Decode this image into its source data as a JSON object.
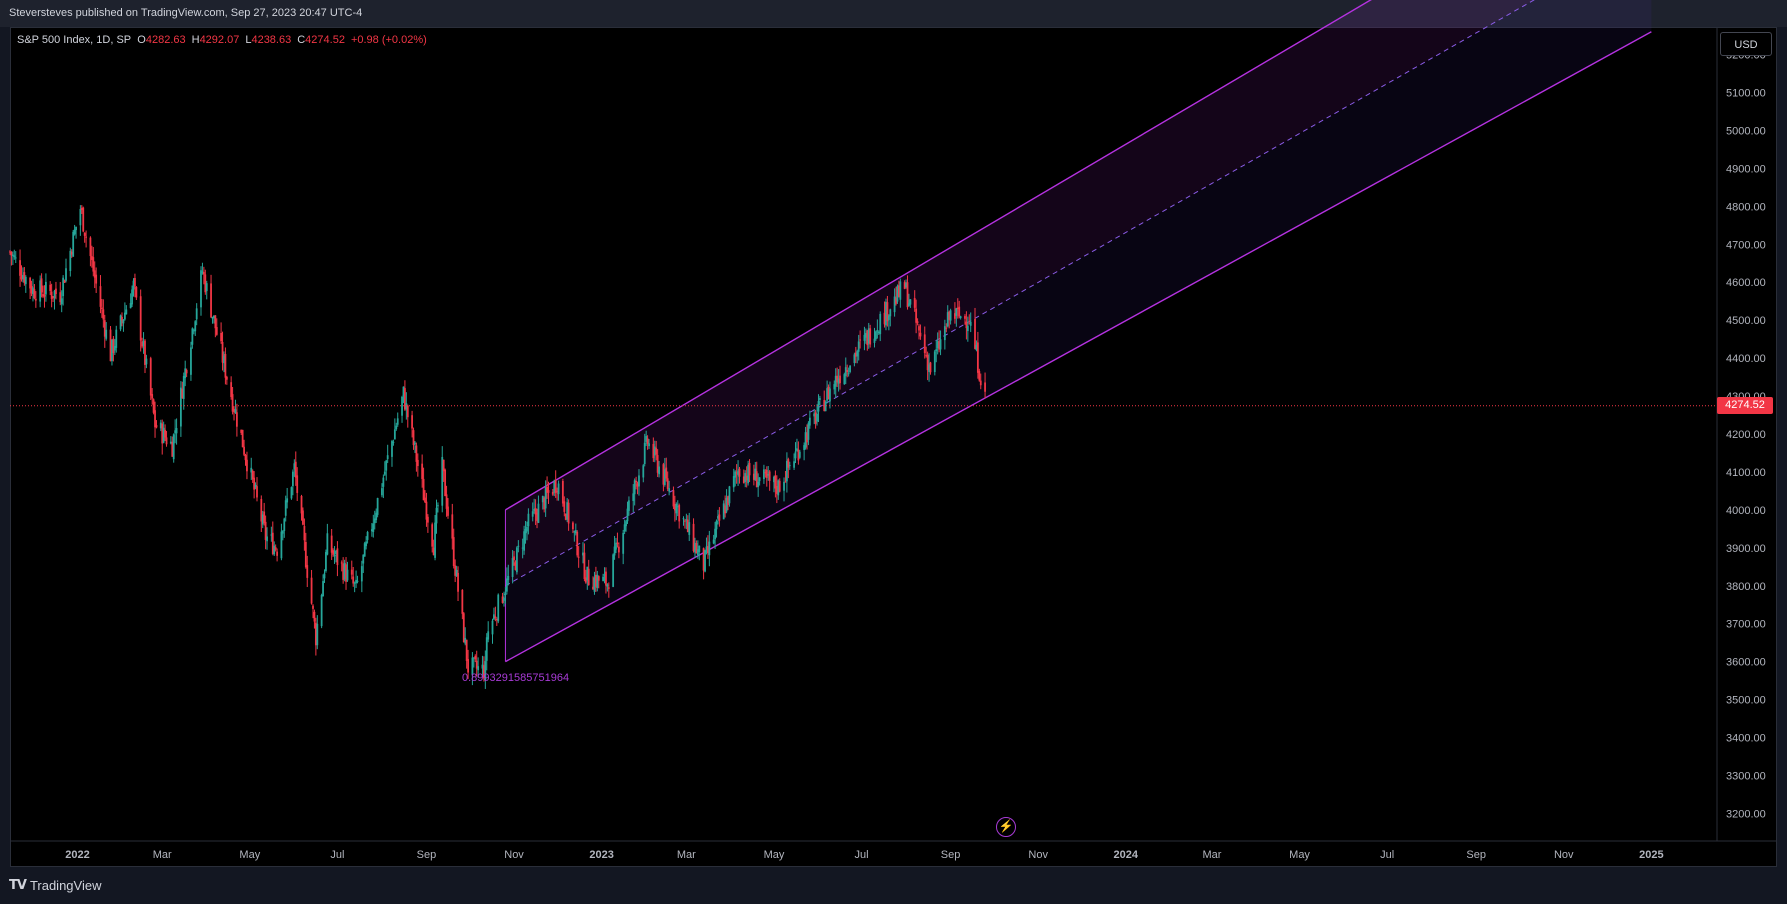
{
  "header": {
    "published": "Steversteves published on TradingView.com, Sep 27, 2023 20:47 UTC-4"
  },
  "legend": {
    "symbol": "S&P 500 Index, 1D, SP",
    "o_label": "O",
    "o_value": "4282.63",
    "h_label": "H",
    "h_value": "4292.07",
    "l_label": "L",
    "l_value": "4238.63",
    "c_label": "C",
    "c_value": "4274.52",
    "change": "+0.98 (+0.02%)"
  },
  "currency_button": "USD",
  "last_price": "4274.52",
  "fib_label": "0.8993291585751964",
  "footer": {
    "brand": "TradingView",
    "logo_icon": "tradingview-logo-icon"
  },
  "colors": {
    "up": "#26a69a",
    "down": "#f23645",
    "channel": "#b532e0",
    "background": "#000000",
    "price_line": "#f23645"
  },
  "chart_data": {
    "type": "candlestick",
    "title": "S&P 500 Index, 1D, SP",
    "ylim": [
      3130,
      5270
    ],
    "y_ticks": [
      3200,
      3300,
      3400,
      3500,
      3600,
      3700,
      3800,
      3900,
      4000,
      4100,
      4200,
      4300,
      4400,
      4500,
      4600,
      4700,
      4800,
      4900,
      5000,
      5100,
      5200
    ],
    "y_tick_labels": [
      "3200.00",
      "3300.00",
      "3400.00",
      "3500.00",
      "3600.00",
      "3700.00",
      "3800.00",
      "3900.00",
      "4000.00",
      "4100.00",
      "4200.00",
      "4300.00",
      "4400.00",
      "4500.00",
      "4600.00",
      "4700.00",
      "4800.00",
      "4900.00",
      "5000.00",
      "5100.00",
      "5200.00"
    ],
    "x_tick_labels": [
      "2022",
      "Mar",
      "May",
      "Jul",
      "Sep",
      "Nov",
      "2023",
      "Mar",
      "May",
      "Jul",
      "Sep",
      "Nov",
      "2024",
      "Mar",
      "May",
      "Jul",
      "Sep",
      "Nov",
      "2025"
    ],
    "x_tick_dates": [
      "2022-01-01",
      "2022-03-01",
      "2022-05-01",
      "2022-07-01",
      "2022-09-01",
      "2022-11-01",
      "2023-01-01",
      "2023-03-01",
      "2023-05-01",
      "2023-07-01",
      "2023-09-01",
      "2023-11-01",
      "2024-01-01",
      "2024-03-01",
      "2024-05-01",
      "2024-07-01",
      "2024-09-01",
      "2024-11-01",
      "2025-01-01"
    ],
    "x_range": [
      "2021-11-15",
      "2025-02-15"
    ],
    "last_price": 4274.52,
    "close_path": [
      [
        "2021-11-15",
        4680
      ],
      [
        "2021-12-01",
        4580
      ],
      [
        "2021-12-20",
        4570
      ],
      [
        "2022-01-03",
        4796
      ],
      [
        "2022-01-24",
        4410
      ],
      [
        "2022-02-09",
        4590
      ],
      [
        "2022-02-24",
        4225
      ],
      [
        "2022-03-08",
        4170
      ],
      [
        "2022-03-29",
        4630
      ],
      [
        "2022-04-12",
        4400
      ],
      [
        "2022-04-29",
        4130
      ],
      [
        "2022-05-12",
        3930
      ],
      [
        "2022-05-20",
        3900
      ],
      [
        "2022-06-01",
        4110
      ],
      [
        "2022-06-16",
        3666
      ],
      [
        "2022-06-24",
        3910
      ],
      [
        "2022-07-14",
        3790
      ],
      [
        "2022-08-16",
        4305
      ],
      [
        "2022-09-06",
        3910
      ],
      [
        "2022-09-12",
        4110
      ],
      [
        "2022-09-30",
        3585
      ],
      [
        "2022-10-12",
        3577
      ],
      [
        "2022-10-13",
        3670
      ],
      [
        "2022-11-01",
        3856
      ],
      [
        "2022-11-10",
        3956
      ],
      [
        "2022-12-01",
        4076
      ],
      [
        "2022-12-22",
        3822
      ],
      [
        "2023-01-05",
        3808
      ],
      [
        "2023-02-02",
        4179
      ],
      [
        "2023-03-13",
        3855
      ],
      [
        "2023-04-06",
        4105
      ],
      [
        "2023-05-04",
        4061
      ],
      [
        "2023-06-12",
        4338
      ],
      [
        "2023-07-31",
        4588
      ],
      [
        "2023-08-18",
        4370
      ],
      [
        "2023-09-01",
        4515
      ],
      [
        "2023-09-14",
        4505
      ],
      [
        "2023-09-26",
        4274
      ]
    ],
    "channel": {
      "start_date": "2022-10-26",
      "upper_start": 4000,
      "lower_start": 3600,
      "end_date": "2025-01-01",
      "upper_end": 5780,
      "lower_end": 5260,
      "fib_value": "0.8993291585751964"
    }
  }
}
